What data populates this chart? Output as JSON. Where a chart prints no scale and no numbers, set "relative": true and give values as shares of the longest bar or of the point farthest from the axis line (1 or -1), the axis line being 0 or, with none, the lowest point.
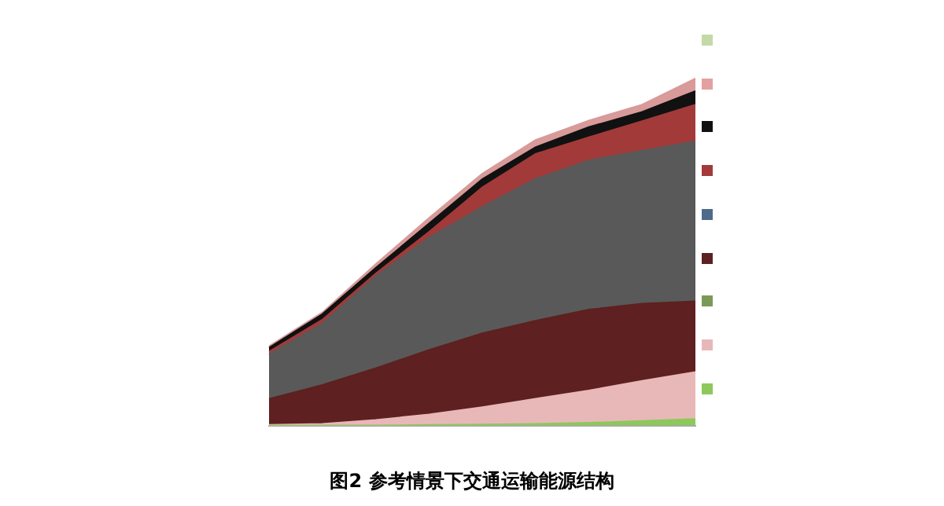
{
  "chart_data": {
    "type": "area",
    "relative": true,
    "stacked": true,
    "categories": [
      null,
      null,
      null,
      null,
      null,
      null,
      null,
      null,
      null
    ],
    "annotations": [
      "图2 参考情景下交通运输能源结构"
    ],
    "series": [
      {
        "color": "#8cc95a",
        "values": [
          0,
          0,
          0,
          0.002,
          0.003,
          0.005,
          0.008,
          0.013,
          0.019
        ]
      },
      {
        "color": "#e8b8b8",
        "values": [
          0.002,
          0.005,
          0.016,
          0.03,
          0.05,
          0.072,
          0.093,
          0.116,
          0.135
        ]
      },
      {
        "color": "#5e2020",
        "values": [
          0.075,
          0.112,
          0.149,
          0.186,
          0.213,
          0.225,
          0.233,
          0.222,
          0.204
        ]
      },
      {
        "color": "#595959",
        "values": [
          0.128,
          0.177,
          0.265,
          0.324,
          0.364,
          0.409,
          0.43,
          0.441,
          0.461
        ]
      },
      {
        "color": "#a33a3a",
        "values": [
          0.008,
          0.011,
          0.008,
          0.016,
          0.056,
          0.072,
          0.067,
          0.085,
          0.106
        ]
      },
      {
        "color": "#111111",
        "values": [
          0.011,
          0.016,
          0.016,
          0.024,
          0.024,
          0.019,
          0.029,
          0.027,
          0.039
        ]
      },
      {
        "color": "#d99a9a",
        "values": [
          0.005,
          0.005,
          0.011,
          0.016,
          0.016,
          0.021,
          0.019,
          0.021,
          0.036
        ]
      }
    ]
  }
}
